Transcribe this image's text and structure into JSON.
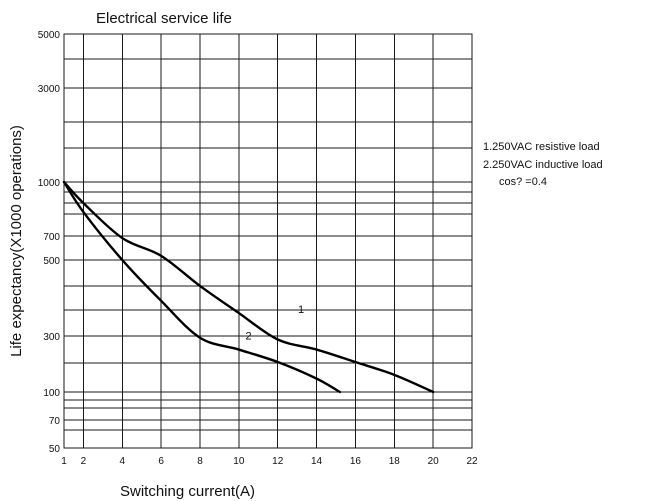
{
  "chart_data": {
    "type": "line",
    "title": "Electrical service life",
    "xlabel": "Switching current(A)",
    "ylabel": "Life expectancy(X1000 operations)",
    "xlim": [
      1,
      22
    ],
    "ylim": [
      50,
      5000
    ],
    "y_scale": "custom-log",
    "grid": true,
    "x_ticks": [
      1,
      2,
      4,
      6,
      8,
      10,
      12,
      14,
      16,
      18,
      20,
      22
    ],
    "y_ticks": [
      50,
      70,
      100,
      300,
      500,
      700,
      1000,
      3000,
      5000
    ],
    "legend": {
      "placement": "right",
      "entries": [
        "1.250VAC resistive load",
        "2.250VAC inductive load",
        "cos? =0.4"
      ]
    },
    "series": [
      {
        "name": "1",
        "x": [
          1,
          2,
          4,
          6,
          8,
          10,
          12,
          14,
          16,
          18,
          20
        ],
        "y": [
          1000,
          870,
          680,
          530,
          420,
          350,
          280,
          230,
          180,
          140,
          100
        ]
      },
      {
        "name": "2",
        "x": [
          1,
          2,
          4,
          6,
          8,
          10,
          12,
          14,
          15.2
        ],
        "y": [
          1000,
          820,
          500,
          380,
          290,
          230,
          180,
          130,
          100
        ]
      }
    ],
    "series_labels": [
      {
        "text": "1",
        "x": 13.2,
        "y": 350
      },
      {
        "text": "2",
        "x": 10.5,
        "y": 280
      }
    ]
  }
}
